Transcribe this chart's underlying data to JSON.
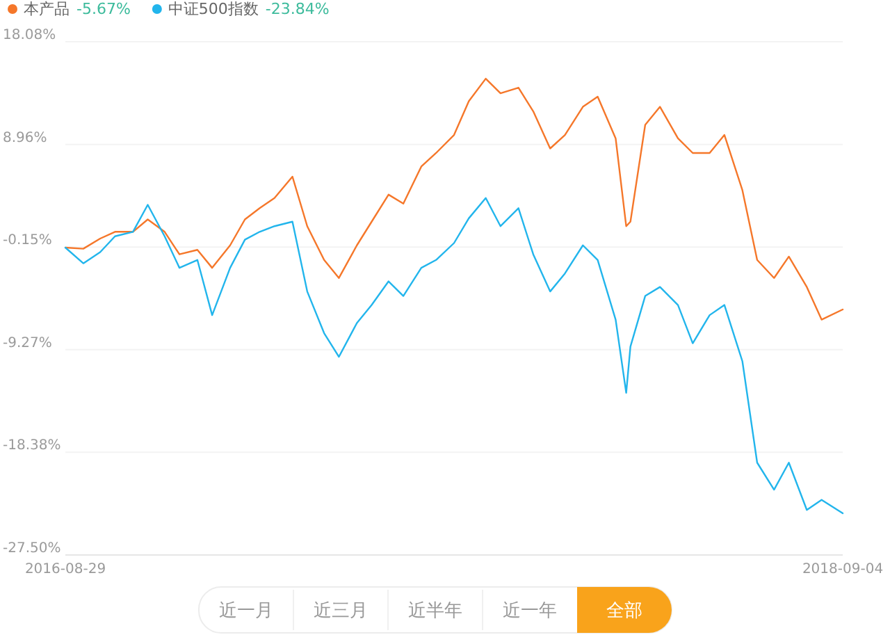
{
  "chart_data": {
    "type": "line",
    "x": [
      "2016-08-29",
      "2016-09-15",
      "2016-10-01",
      "2016-10-15",
      "2016-11-01",
      "2016-11-15",
      "2016-12-01",
      "2016-12-15",
      "2017-01-01",
      "2017-01-15",
      "2017-02-01",
      "2017-02-15",
      "2017-03-01",
      "2017-03-15",
      "2017-04-01",
      "2017-04-15",
      "2017-05-01",
      "2017-05-15",
      "2017-06-01",
      "2017-06-15",
      "2017-07-01",
      "2017-07-15",
      "2017-08-01",
      "2017-08-15",
      "2017-09-01",
      "2017-09-15",
      "2017-10-01",
      "2017-10-15",
      "2017-11-01",
      "2017-11-15",
      "2017-12-01",
      "2017-12-15",
      "2018-01-01",
      "2018-01-15",
      "2018-02-01",
      "2018-02-11",
      "2018-02-15",
      "2018-03-01",
      "2018-03-15",
      "2018-04-01",
      "2018-04-15",
      "2018-05-01",
      "2018-05-15",
      "2018-06-01",
      "2018-06-15",
      "2018-07-01",
      "2018-07-15",
      "2018-08-01",
      "2018-08-15",
      "2018-09-04"
    ],
    "series": [
      {
        "name": "本产品",
        "color": "#f5772a",
        "values": [
          -0.2,
          -0.3,
          0.6,
          1.2,
          1.2,
          2.3,
          1.2,
          -0.8,
          -0.4,
          -2.0,
          0.0,
          2.3,
          3.3,
          4.2,
          6.1,
          1.7,
          -1.3,
          -2.9,
          0.0,
          2.1,
          4.5,
          3.7,
          7.0,
          8.2,
          9.8,
          12.8,
          14.8,
          13.5,
          14.0,
          11.9,
          8.6,
          9.8,
          12.3,
          13.2,
          9.5,
          1.7,
          2.1,
          10.7,
          12.3,
          9.5,
          8.2,
          8.2,
          9.8,
          4.9,
          -1.3,
          -2.9,
          -1.0,
          -3.7,
          -6.6,
          -5.7
        ]
      },
      {
        "name": "中证500指数",
        "color": "#22b5ec",
        "values": [
          -0.2,
          -1.6,
          -0.6,
          0.8,
          1.2,
          3.6,
          0.8,
          -2.0,
          -1.3,
          -6.2,
          -2.0,
          0.5,
          1.2,
          1.7,
          2.1,
          -4.1,
          -7.8,
          -9.9,
          -6.9,
          -5.3,
          -3.2,
          -4.5,
          -2.0,
          -1.3,
          0.2,
          2.4,
          4.2,
          1.7,
          3.3,
          -0.8,
          -4.1,
          -2.5,
          0.0,
          -1.3,
          -6.6,
          -13.1,
          -9.0,
          -4.5,
          -3.7,
          -5.3,
          -8.7,
          -6.2,
          -5.3,
          -10.3,
          -19.3,
          -21.7,
          -19.3,
          -23.5,
          -22.6,
          -23.8
        ]
      }
    ],
    "ylim": [
      -27.5,
      18.08
    ],
    "yticks": [
      {
        "value": 18.08,
        "label": "18.08%"
      },
      {
        "value": 8.96,
        "label": "8.96%"
      },
      {
        "value": -0.15,
        "label": "-0.15%"
      },
      {
        "value": -9.27,
        "label": "-9.27%"
      },
      {
        "value": -18.38,
        "label": "-18.38%"
      },
      {
        "value": -27.5,
        "label": "-27.50%"
      }
    ],
    "xlim": [
      "2016-08-29",
      "2018-09-04"
    ],
    "xticks": [
      "2016-08-29",
      "2018-09-04"
    ],
    "grid": "y",
    "legend": "top left",
    "marker": "none",
    "line_style": "solid",
    "annotations": [
      "-5.67%",
      "-23.84%",
      "近一月",
      "近三月",
      "近半年",
      "近一年",
      "全部"
    ]
  }
}
